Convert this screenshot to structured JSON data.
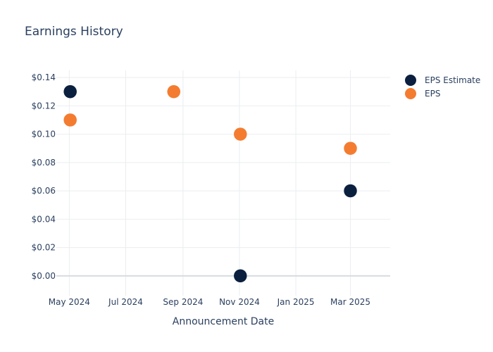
{
  "chart_data": {
    "type": "scatter",
    "title": "Earnings History",
    "xlabel": "Announcement Date",
    "ylabel": "",
    "ylim": [
      -0.014,
      0.145
    ],
    "xlim": [
      "2024-04-17",
      "2025-04-13"
    ],
    "x_ticks": [
      {
        "date": "2024-05-01",
        "label": "May 2024"
      },
      {
        "date": "2024-07-01",
        "label": "Jul 2024"
      },
      {
        "date": "2024-09-01",
        "label": "Sep 2024"
      },
      {
        "date": "2024-11-01",
        "label": "Nov 2024"
      },
      {
        "date": "2025-01-01",
        "label": "Jan 2025"
      },
      {
        "date": "2025-03-01",
        "label": "Mar 2025"
      }
    ],
    "y_ticks": [
      {
        "value": 0.0,
        "label": "$0.00"
      },
      {
        "value": 0.02,
        "label": "$0.02"
      },
      {
        "value": 0.04,
        "label": "$0.04"
      },
      {
        "value": 0.06,
        "label": "$0.06"
      },
      {
        "value": 0.08,
        "label": "$0.08"
      },
      {
        "value": 0.1,
        "label": "$0.10"
      },
      {
        "value": 0.12,
        "label": "$0.12"
      },
      {
        "value": 0.14,
        "label": "$0.14"
      }
    ],
    "grid": true,
    "legend_position": "top-right",
    "series": [
      {
        "name": "EPS Estimate",
        "color": "#0b1f3f",
        "points": [
          {
            "x": "2024-05-02",
            "y": 0.13
          },
          {
            "x": "2024-08-22",
            "y": 0.13
          },
          {
            "x": "2024-11-02",
            "y": 0.0
          },
          {
            "x": "2025-03-01",
            "y": 0.06
          }
        ]
      },
      {
        "name": "EPS",
        "color": "#f47c30",
        "points": [
          {
            "x": "2024-05-02",
            "y": 0.11
          },
          {
            "x": "2024-08-22",
            "y": 0.13
          },
          {
            "x": "2024-11-02",
            "y": 0.1
          },
          {
            "x": "2025-03-01",
            "y": 0.09
          }
        ]
      }
    ]
  }
}
